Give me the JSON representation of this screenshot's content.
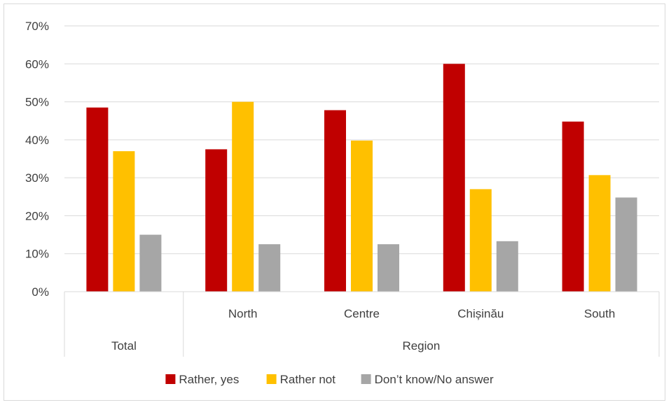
{
  "chart_data": {
    "type": "bar",
    "categories": [
      "",
      "North",
      "Centre",
      "Chișinău",
      "South"
    ],
    "groups": [
      {
        "label": "Total",
        "span": 1
      },
      {
        "label": "Region",
        "span": 4
      }
    ],
    "series": [
      {
        "name": "Rather, yes",
        "color": "#c00000",
        "values": [
          48.5,
          37.5,
          47.8,
          60.0,
          44.8
        ]
      },
      {
        "name": "Rather not",
        "color": "#ffc000",
        "values": [
          37.0,
          50.0,
          39.8,
          27.0,
          30.7
        ]
      },
      {
        "name": "Don’t know/No answer",
        "color": "#a6a6a6",
        "values": [
          15.0,
          12.5,
          12.5,
          13.3,
          24.8
        ]
      }
    ],
    "ylim": [
      0,
      70
    ],
    "yticks": [
      "0%",
      "10%",
      "20%",
      "30%",
      "40%",
      "50%",
      "60%",
      "70%"
    ],
    "grid": true,
    "legend_position": "bottom",
    "title": "",
    "xlabel": "",
    "ylabel": ""
  }
}
